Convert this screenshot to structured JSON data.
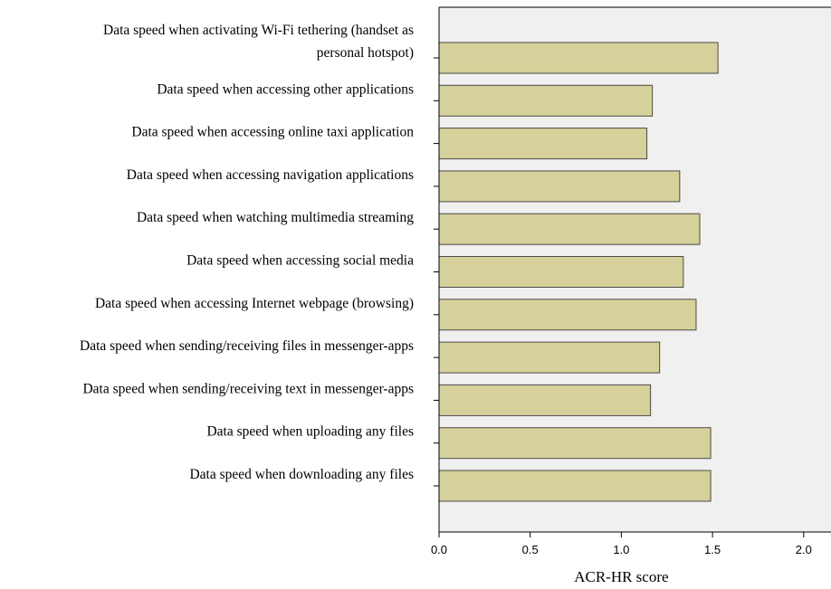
{
  "chart_data": {
    "type": "bar",
    "orientation": "horizontal",
    "xlabel": "ACR-HR score",
    "ylabel": "",
    "xlim": [
      0,
      2.15
    ],
    "xticks": [
      "0.0",
      "0.5",
      "1.0",
      "1.5",
      "2.0"
    ],
    "xtick_values": [
      0,
      0.5,
      1.0,
      1.5,
      2.0
    ],
    "grid": false,
    "categories": [
      [
        "Data speed when activating Wi-Fi tethering (handset as",
        "personal hotspot)"
      ],
      [
        "Data speed when accessing other applications"
      ],
      [
        "Data speed when accessing online taxi application"
      ],
      [
        "Data speed when accessing navigation applications"
      ],
      [
        "Data speed when watching multimedia streaming"
      ],
      [
        "Data speed when accessing social media"
      ],
      [
        "Data speed when accessing Internet webpage (browsing)"
      ],
      [
        "Data speed when sending/receiving files in messenger-apps"
      ],
      [
        "Data speed when sending/receiving text in messenger-apps"
      ],
      [
        "Data speed when uploading any files"
      ],
      [
        "Data speed when downloading any files"
      ]
    ],
    "values": [
      1.53,
      1.17,
      1.14,
      1.32,
      1.43,
      1.34,
      1.41,
      1.21,
      1.16,
      1.49,
      1.49
    ],
    "colors": {
      "bar_fill": "#d6d09a",
      "bar_stroke": "#4a4a4a",
      "plot_background": "#f0f0f0",
      "axis": "#000000"
    }
  }
}
